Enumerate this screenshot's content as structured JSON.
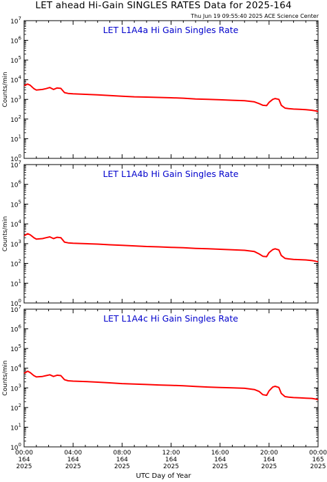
{
  "title": "LET ahead Hi-Gain SINGLES RATES Data for 2025-164",
  "timestamp": "Thu Jun 19 09:55:40 2025 ACE Science Center",
  "xlabel": "UTC Day of Year",
  "colors": {
    "data": "#ff0000",
    "panel_title": "#0000cc",
    "axis": "#000000"
  },
  "x_ticks": [
    {
      "time": "00:00",
      "doy": "164",
      "year": "2025"
    },
    {
      "time": "04:00",
      "doy": "164",
      "year": "2025"
    },
    {
      "time": "08:00",
      "doy": "164",
      "year": "2025"
    },
    {
      "time": "12:00",
      "doy": "164",
      "year": "2025"
    },
    {
      "time": "16:00",
      "doy": "164",
      "year": "2025"
    },
    {
      "time": "20:00",
      "doy": "164",
      "year": "2025"
    },
    {
      "time": "00:00",
      "doy": "165",
      "year": "2025"
    }
  ],
  "chart_data": [
    {
      "type": "line",
      "title": "LET L1A4a Hi Gain Singles Rate",
      "ylabel": "Counts/min",
      "yscale": "log",
      "ylim": [
        1,
        10000000
      ],
      "y_ticks": [
        "10^0",
        "10^1",
        "10^2",
        "10^3",
        "10^4",
        "10^5",
        "10^6",
        "10^7"
      ],
      "xlim_hours": [
        0,
        24
      ],
      "x": [
        0.0,
        0.3,
        0.5,
        0.8,
        1.0,
        1.5,
        1.8,
        2.1,
        2.4,
        2.7,
        3.0,
        3.3,
        3.6,
        4.0,
        5.0,
        6.0,
        7.0,
        8.0,
        9.0,
        10.0,
        11.0,
        12.0,
        13.0,
        14.0,
        15.0,
        16.0,
        17.0,
        18.0,
        18.8,
        19.2,
        19.5,
        19.8,
        20.0,
        20.3,
        20.5,
        20.8,
        21.0,
        21.3,
        21.6,
        22.0,
        22.5,
        23.0,
        23.5,
        23.8,
        24.0
      ],
      "y": [
        5000,
        6000,
        5200,
        3500,
        3000,
        3200,
        3500,
        4000,
        3200,
        3800,
        3600,
        2200,
        2000,
        1900,
        1800,
        1700,
        1550,
        1450,
        1350,
        1300,
        1250,
        1200,
        1150,
        1050,
        1000,
        950,
        900,
        850,
        750,
        600,
        500,
        480,
        700,
        1000,
        1100,
        1000,
        500,
        360,
        340,
        320,
        310,
        300,
        280,
        260,
        240
      ],
      "series_name": ""
    },
    {
      "type": "line",
      "title": "LET L1A4b Hi Gain Singles Rate",
      "ylabel": "Counts/min",
      "yscale": "log",
      "ylim": [
        1,
        10000000
      ],
      "y_ticks": [
        "10^0",
        "10^1",
        "10^2",
        "10^3",
        "10^4",
        "10^5",
        "10^6",
        "10^7"
      ],
      "xlim_hours": [
        0,
        24
      ],
      "x": [
        0.0,
        0.3,
        0.5,
        0.8,
        1.0,
        1.5,
        1.8,
        2.1,
        2.4,
        2.7,
        3.0,
        3.3,
        3.6,
        4.0,
        5.0,
        6.0,
        7.0,
        8.0,
        9.0,
        10.0,
        11.0,
        12.0,
        13.0,
        14.0,
        15.0,
        16.0,
        17.0,
        18.0,
        18.8,
        19.2,
        19.5,
        19.8,
        20.0,
        20.3,
        20.5,
        20.8,
        21.0,
        21.3,
        21.6,
        22.0,
        22.5,
        23.0,
        23.5,
        23.8,
        24.0
      ],
      "y": [
        2500,
        3200,
        2800,
        2000,
        1700,
        1800,
        2000,
        2200,
        1800,
        2100,
        2000,
        1200,
        1100,
        1050,
        1000,
        950,
        880,
        820,
        770,
        720,
        690,
        650,
        620,
        580,
        550,
        520,
        490,
        460,
        400,
        300,
        230,
        220,
        350,
        500,
        550,
        480,
        250,
        180,
        170,
        160,
        155,
        150,
        140,
        130,
        120
      ],
      "series_name": ""
    },
    {
      "type": "line",
      "title": "LET L1A4c Hi Gain Singles Rate",
      "ylabel": "Counts/min",
      "yscale": "log",
      "ylim": [
        1,
        10000000
      ],
      "y_ticks": [
        "10^0",
        "10^1",
        "10^2",
        "10^3",
        "10^4",
        "10^5",
        "10^6",
        "10^7"
      ],
      "xlim_hours": [
        0,
        24
      ],
      "x": [
        0.0,
        0.3,
        0.5,
        0.8,
        1.0,
        1.5,
        1.8,
        2.1,
        2.4,
        2.7,
        3.0,
        3.3,
        3.6,
        4.0,
        5.0,
        6.0,
        7.0,
        8.0,
        9.0,
        10.0,
        11.0,
        12.0,
        13.0,
        14.0,
        15.0,
        16.0,
        17.0,
        18.0,
        18.8,
        19.2,
        19.5,
        19.8,
        20.0,
        20.3,
        20.5,
        20.8,
        21.0,
        21.3,
        21.6,
        22.0,
        22.5,
        23.0,
        23.5,
        23.8,
        24.0
      ],
      "y": [
        5500,
        7000,
        6000,
        4200,
        3600,
        3800,
        4200,
        4600,
        3800,
        4400,
        4200,
        2600,
        2300,
        2200,
        2100,
        1950,
        1800,
        1650,
        1550,
        1480,
        1400,
        1350,
        1280,
        1180,
        1100,
        1050,
        1000,
        950,
        820,
        650,
        450,
        420,
        700,
        1100,
        1200,
        1050,
        520,
        360,
        340,
        320,
        310,
        300,
        290,
        270,
        250
      ],
      "series_name": ""
    }
  ]
}
